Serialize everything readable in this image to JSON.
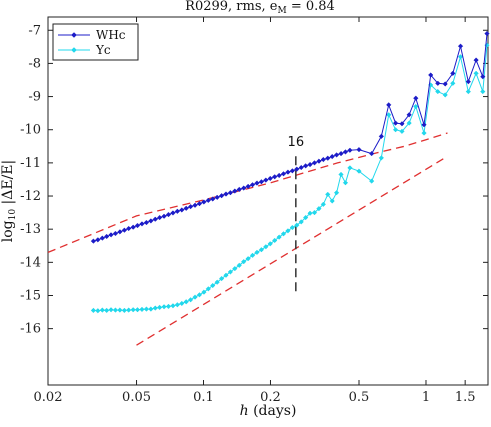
{
  "chart_data": {
    "type": "line",
    "title": "R0299, rms, e",
    "title_sub": "M",
    "title_rest": " = 0.84",
    "xlabel_italic": "h",
    "xlabel_rest": " (days)",
    "ylabel_main": "log",
    "ylabel_sub": "10",
    "ylabel_rest": " |ΔE/E|",
    "x_scale": "log",
    "xlim": [
      0.02,
      1.9
    ],
    "ylim": [
      -17.7,
      -6.6
    ],
    "x_ticks": [
      0.02,
      0.05,
      0.1,
      0.2,
      0.5,
      1,
      1.5
    ],
    "x_tick_labels": [
      "0.02",
      "0.05",
      "0.1",
      "0.2",
      "0.5",
      "1",
      "1.5"
    ],
    "y_ticks": [
      -16,
      -15,
      -14,
      -13,
      -12,
      -11,
      -10,
      -9,
      -8,
      -7
    ],
    "y_tick_labels": [
      "-16",
      "-15",
      "-14",
      "-13",
      "-12",
      "-11",
      "-10",
      "-9",
      "-8",
      "-7"
    ],
    "grid": false,
    "legend_position": "top-left",
    "annotation": {
      "text": "16",
      "x": 0.26,
      "y_from": -15.0,
      "y_to": -10.8
    },
    "series": [
      {
        "name": "WHc",
        "color": "#1c1cc8",
        "marker": "diamond",
        "x": [
          0.032,
          0.0335,
          0.0351,
          0.0367,
          0.0384,
          0.0402,
          0.0421,
          0.0441,
          0.0461,
          0.0483,
          0.0505,
          0.0529,
          0.0554,
          0.058,
          0.0607,
          0.0635,
          0.0665,
          0.0696,
          0.0729,
          0.0763,
          0.0799,
          0.0836,
          0.0875,
          0.0916,
          0.0959,
          0.1004,
          0.1051,
          0.11,
          0.1152,
          0.1206,
          0.1262,
          0.1321,
          0.1383,
          0.1448,
          0.1516,
          0.1587,
          0.1661,
          0.1739,
          0.1821,
          0.1906,
          0.1995,
          0.2089,
          0.2187,
          0.2289,
          0.2396,
          0.2509,
          0.2626,
          0.2749,
          0.2878,
          0.3013,
          0.3154,
          0.3302,
          0.3456,
          0.3618,
          0.3788,
          0.3965,
          0.4151,
          0.4346,
          0.455,
          0.5,
          0.57,
          0.63,
          0.68,
          0.73,
          0.78,
          0.84,
          0.9,
          0.98,
          1.05,
          1.13,
          1.22,
          1.32,
          1.43,
          1.55,
          1.68,
          1.8,
          1.88
        ],
        "y": [
          -13.36,
          -13.32,
          -13.27,
          -13.22,
          -13.17,
          -13.13,
          -13.08,
          -13.03,
          -12.98,
          -12.94,
          -12.89,
          -12.84,
          -12.8,
          -12.75,
          -12.7,
          -12.65,
          -12.61,
          -12.56,
          -12.51,
          -12.46,
          -12.42,
          -12.37,
          -12.32,
          -12.28,
          -12.23,
          -12.18,
          -12.13,
          -12.09,
          -12.04,
          -11.99,
          -11.94,
          -11.9,
          -11.85,
          -11.8,
          -11.76,
          -11.71,
          -11.66,
          -11.61,
          -11.57,
          -11.52,
          -11.47,
          -11.42,
          -11.38,
          -11.33,
          -11.28,
          -11.24,
          -11.19,
          -11.14,
          -11.09,
          -11.05,
          -11.0,
          -10.95,
          -10.9,
          -10.86,
          -10.81,
          -10.76,
          -10.72,
          -10.67,
          -10.62,
          -10.6,
          -10.72,
          -10.2,
          -9.25,
          -9.8,
          -9.82,
          -9.55,
          -9.05,
          -9.85,
          -8.35,
          -8.6,
          -8.62,
          -8.3,
          -7.48,
          -8.55,
          -7.9,
          -8.4,
          -7.1
        ]
      },
      {
        "name": "Yc",
        "color": "#22d8ec",
        "marker": "diamond",
        "x": [
          0.032,
          0.0335,
          0.0351,
          0.0367,
          0.0384,
          0.0402,
          0.0421,
          0.0441,
          0.0461,
          0.0483,
          0.0505,
          0.0529,
          0.0554,
          0.058,
          0.0607,
          0.0635,
          0.0665,
          0.0696,
          0.0729,
          0.0763,
          0.0799,
          0.0836,
          0.0875,
          0.0916,
          0.0959,
          0.1004,
          0.1051,
          0.11,
          0.1152,
          0.1206,
          0.1262,
          0.1321,
          0.1383,
          0.1448,
          0.1516,
          0.1587,
          0.1661,
          0.1739,
          0.1821,
          0.1906,
          0.1995,
          0.2089,
          0.2187,
          0.2289,
          0.2396,
          0.2509,
          0.2626,
          0.2749,
          0.2878,
          0.3013,
          0.3154,
          0.3302,
          0.3456,
          0.3618,
          0.3788,
          0.3965,
          0.4151,
          0.4346,
          0.455,
          0.5,
          0.57,
          0.63,
          0.68,
          0.73,
          0.78,
          0.84,
          0.9,
          0.98,
          1.05,
          1.13,
          1.22,
          1.32,
          1.43,
          1.55,
          1.68,
          1.8,
          1.88
        ],
        "y": [
          -15.45,
          -15.46,
          -15.44,
          -15.45,
          -15.43,
          -15.44,
          -15.44,
          -15.45,
          -15.44,
          -15.43,
          -15.43,
          -15.42,
          -15.41,
          -15.41,
          -15.38,
          -15.36,
          -15.34,
          -15.33,
          -15.31,
          -15.28,
          -15.24,
          -15.19,
          -15.13,
          -15.05,
          -14.98,
          -14.9,
          -14.8,
          -14.7,
          -14.6,
          -14.49,
          -14.39,
          -14.29,
          -14.19,
          -14.09,
          -13.98,
          -13.89,
          -13.79,
          -13.7,
          -13.62,
          -13.53,
          -13.44,
          -13.34,
          -13.24,
          -13.14,
          -13.05,
          -12.95,
          -12.88,
          -12.78,
          -12.65,
          -12.52,
          -12.5,
          -12.38,
          -12.25,
          -11.95,
          -12.15,
          -11.9,
          -11.35,
          -11.6,
          -11.15,
          -11.25,
          -11.55,
          -10.85,
          -9.55,
          -10.0,
          -10.05,
          -9.8,
          -9.3,
          -10.1,
          -8.65,
          -8.85,
          -8.95,
          -8.6,
          -7.8,
          -8.85,
          -8.3,
          -8.85,
          -7.45
        ]
      }
    ],
    "reference_lines": [
      {
        "color": "#e03030",
        "style": "dashed",
        "x": [
          0.02,
          0.05,
          0.1,
          0.2,
          0.4,
          0.6,
          0.8,
          1.0,
          1.25
        ],
        "y": [
          -13.7,
          -12.6,
          -12.12,
          -11.6,
          -11.0,
          -10.7,
          -10.5,
          -10.3,
          -10.1
        ]
      },
      {
        "color": "#e03030",
        "style": "dashed",
        "x": [
          0.05,
          1.25
        ],
        "y": [
          -16.5,
          -10.8
        ]
      }
    ]
  }
}
